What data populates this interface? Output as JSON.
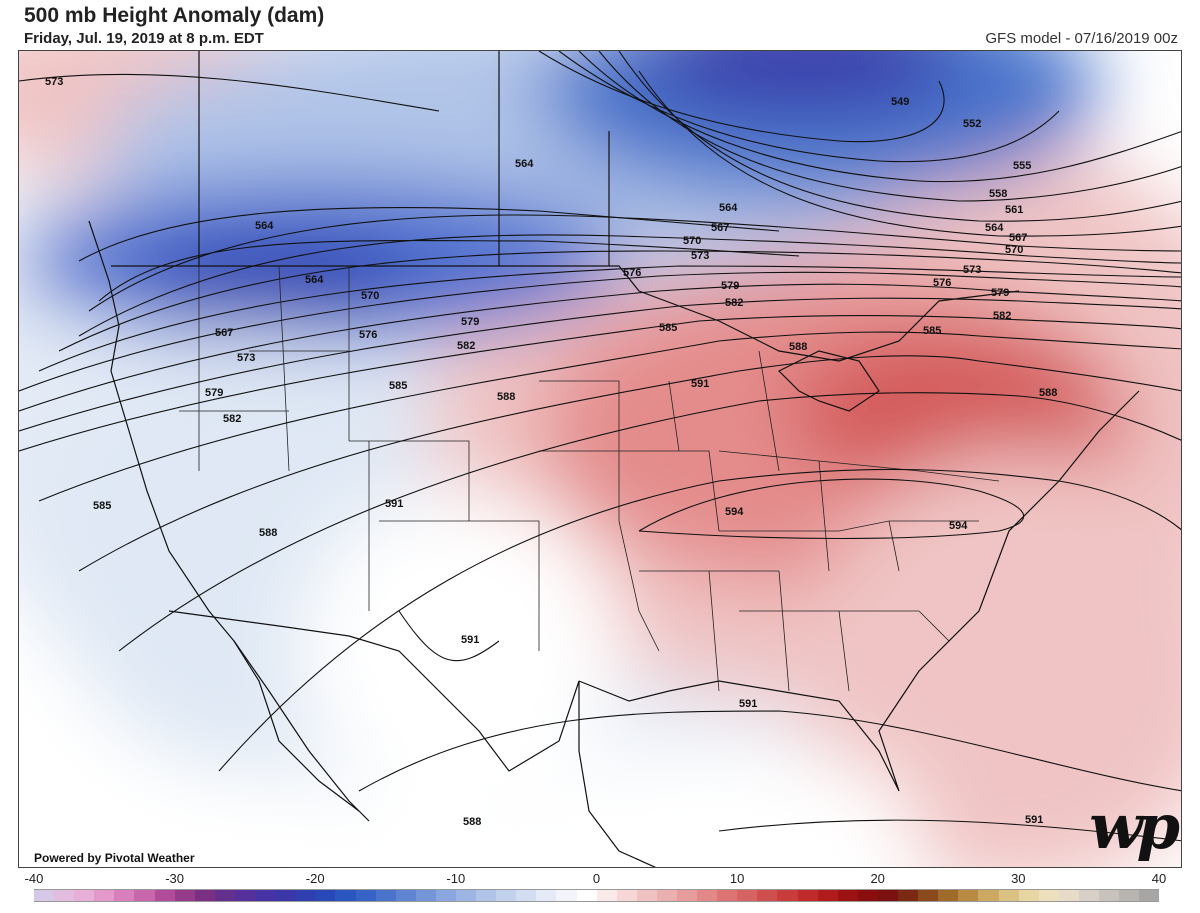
{
  "header": {
    "title": "500 mb Height Anomaly (dam)",
    "valid_time": "Friday, Jul. 19, 2019 at 8 p.m. EDT",
    "model_run": "GFS model - 07/16/2019 00z"
  },
  "credit": "Powered by Pivotal Weather",
  "logo": "wp",
  "colorbar": {
    "ticks": [
      "-40",
      "-30",
      "-20",
      "-10",
      "0",
      "10",
      "20",
      "30",
      "40"
    ],
    "colors": [
      "#d8c8e8",
      "#e2bde0",
      "#e8b0d8",
      "#e39acb",
      "#d97fbd",
      "#c967ad",
      "#b24c9a",
      "#963a8a",
      "#7a2f82",
      "#63308e",
      "#55309a",
      "#4733a3",
      "#3b37a8",
      "#2f3fb0",
      "#2948b8",
      "#2a56c0",
      "#3664c6",
      "#4a74cc",
      "#5e84d2",
      "#7495d8",
      "#89a6de",
      "#9cb5e3",
      "#b0c4e8",
      "#c2d2ed",
      "#d4def2",
      "#e4eaf6",
      "#f2f4f9",
      "#ffffff",
      "#fbeaea",
      "#f6d6d6",
      "#f1c2c2",
      "#ecafaf",
      "#e79c9c",
      "#e28888",
      "#dc7474",
      "#d66262",
      "#cf4f4f",
      "#c83c3c",
      "#c02a2a",
      "#b01c1c",
      "#9c1212",
      "#8a0e0e",
      "#7a1010",
      "#7a2a12",
      "#8a4a1c",
      "#a06a2a",
      "#b88a42",
      "#cca862",
      "#dcc282",
      "#e8d6a2",
      "#ede0bc",
      "#e6dcc8",
      "#d8d0c6",
      "#c8c2bc",
      "#b8b4b0",
      "#a8a6a4"
    ]
  },
  "contours": [
    {
      "value": "573"
    },
    {
      "value": "564"
    },
    {
      "value": "564"
    },
    {
      "value": "564"
    },
    {
      "value": "549"
    },
    {
      "value": "552"
    },
    {
      "value": "555"
    },
    {
      "value": "558"
    },
    {
      "value": "561"
    },
    {
      "value": "564"
    },
    {
      "value": "567"
    },
    {
      "value": "570"
    },
    {
      "value": "564"
    },
    {
      "value": "567"
    },
    {
      "value": "570"
    },
    {
      "value": "573"
    },
    {
      "value": "576"
    },
    {
      "value": "579"
    },
    {
      "value": "582"
    },
    {
      "value": "585"
    },
    {
      "value": "588"
    },
    {
      "value": "591"
    },
    {
      "value": "594"
    },
    {
      "value": "594"
    },
    {
      "value": "573"
    },
    {
      "value": "576"
    },
    {
      "value": "579"
    },
    {
      "value": "582"
    },
    {
      "value": "585"
    },
    {
      "value": "588"
    },
    {
      "value": "567"
    },
    {
      "value": "573"
    },
    {
      "value": "579"
    },
    {
      "value": "582"
    },
    {
      "value": "570"
    },
    {
      "value": "576"
    },
    {
      "value": "579"
    },
    {
      "value": "582"
    },
    {
      "value": "585"
    },
    {
      "value": "588"
    },
    {
      "value": "585"
    },
    {
      "value": "588"
    },
    {
      "value": "591"
    },
    {
      "value": "591"
    },
    {
      "value": "591"
    },
    {
      "value": "588"
    },
    {
      "value": "591"
    }
  ]
}
